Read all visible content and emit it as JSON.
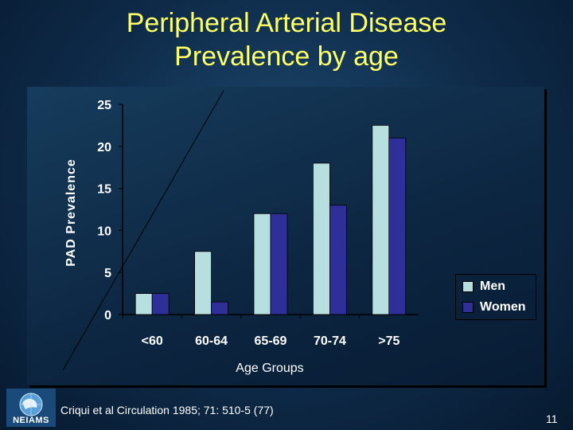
{
  "slide": {
    "title_line1": "Peripheral Arterial Disease",
    "title_line2": "Prevalence by age",
    "citation": "Criqui et al  Circulation 1985; 71: 510-5 (77)",
    "slide_number": "11",
    "logo_label": "NEIAMS"
  },
  "colors": {
    "men": "#b8dfe0",
    "women": "#2f2f9a",
    "title": "#ffff66",
    "axis_text": "#ffffff"
  },
  "chart_data": {
    "type": "bar",
    "title": "",
    "xlabel": "Age Groups",
    "ylabel": "PAD Prevalence",
    "categories": [
      "<60",
      "60-64",
      "65-69",
      "70-74",
      ">75"
    ],
    "series": [
      {
        "name": "Men",
        "values": [
          2.5,
          7.5,
          12,
          18,
          22.5
        ]
      },
      {
        "name": "Women",
        "values": [
          2.5,
          1.5,
          12,
          13,
          21
        ]
      }
    ],
    "ylim": [
      0,
      25
    ],
    "yticks": [
      "0",
      "5",
      "10",
      "15",
      "20",
      "25"
    ],
    "grid": false,
    "legend": "right"
  }
}
